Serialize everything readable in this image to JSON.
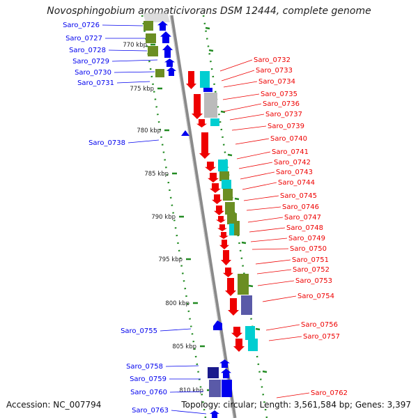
{
  "title": "Novosphingobium aromaticivorans DSM 12444, complete genome",
  "accession": "Accession: NC_007794",
  "summary": "Topology: circular; Length: 3,561,584 bp; Genes: 3,397",
  "colors": {
    "blue": "#0000ee",
    "red": "#ee0000",
    "olive": "#6b8e23",
    "cyan": "#00ced1",
    "grey": "#bbbbbb",
    "navy": "#1a1a8c",
    "slate": "#5a5aa8",
    "dots": "#228b22",
    "backbone": "#888888"
  },
  "ticks": [
    "770 kbp",
    "775 kbp",
    "780 kbp",
    "785 kbp",
    "790 kbp",
    "795 kbp",
    "800 kbp",
    "805 kbp",
    "810 kbp"
  ],
  "genes_left": [
    "Saro_0726",
    "Saro_0727",
    "Saro_0728",
    "Saro_0729",
    "Saro_0730",
    "Saro_0731",
    "Saro_0738",
    "Saro_0755",
    "Saro_0758",
    "Saro_0759",
    "Saro_0760",
    "Saro_0763"
  ],
  "genes_right": [
    "Saro_0732",
    "Saro_0733",
    "Saro_0734",
    "Saro_0735",
    "Saro_0736",
    "Saro_0737",
    "Saro_0739",
    "Saro_0740",
    "Saro_0741",
    "Saro_0742",
    "Saro_0743",
    "Saro_0744",
    "Saro_0745",
    "Saro_0746",
    "Saro_0747",
    "Saro_0748",
    "Saro_0749",
    "Saro_0750",
    "Saro_0751",
    "Saro_0752",
    "Saro_0753",
    "Saro_0754",
    "Saro_0756",
    "Saro_0757",
    "Saro_0762"
  ]
}
